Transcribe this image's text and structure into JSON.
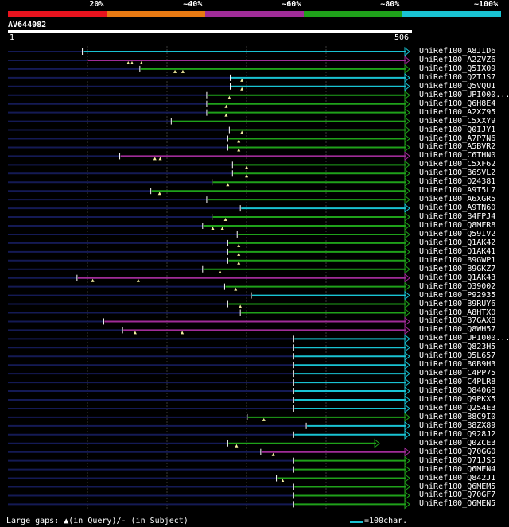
{
  "legend": {
    "segments": [
      {
        "label": "20%",
        "color": "#e8131e"
      },
      {
        "label": "~40%",
        "color": "#e87a13"
      },
      {
        "label": "~60%",
        "color": "#a02c98"
      },
      {
        "label": "~80%",
        "color": "#1fa11a"
      },
      {
        "label": "~100%",
        "color": "#19c3d3"
      }
    ]
  },
  "query": {
    "name": "AV644082",
    "start_label": "1",
    "end_label": "506",
    "length": 506
  },
  "colors": {
    "cyan": "#19c3d3",
    "green": "#1fa11a",
    "magenta": "#a02c98",
    "dark_line": "#141a55",
    "grid": "#3a3a3a",
    "marker": "#f5f0a0"
  },
  "hits": [
    {
      "id": "UniRef100_A8JID6",
      "start": 237,
      "end": 1279,
      "color": "cyan",
      "markers": []
    },
    {
      "id": "UniRef100_A2ZVZ6",
      "start": 252,
      "end": 1279,
      "color": "magenta",
      "markers": [
        383,
        395,
        425
      ]
    },
    {
      "id": "UniRef100_Q5IX09",
      "start": 420,
      "end": 1279,
      "color": "green",
      "markers": [
        532,
        557
      ]
    },
    {
      "id": "UniRef100_Q2TJS7",
      "start": 708,
      "end": 1279,
      "color": "cyan",
      "markers": [
        745
      ]
    },
    {
      "id": "UniRef100_Q5VQU1",
      "start": 708,
      "end": 1279,
      "color": "cyan",
      "markers": [
        745
      ]
    },
    {
      "id": "UniRef100_UPI000...",
      "start": 633,
      "end": 1279,
      "color": "green",
      "markers": [
        705
      ]
    },
    {
      "id": "UniRef100_Q6H8E4",
      "start": 633,
      "end": 1279,
      "color": "green",
      "markers": [
        695
      ]
    },
    {
      "id": "UniRef100_A2XZ95",
      "start": 633,
      "end": 1279,
      "color": "green",
      "markers": [
        695
      ]
    },
    {
      "id": "UniRef100_C5XXY9",
      "start": 520,
      "end": 1279,
      "color": "green",
      "markers": []
    },
    {
      "id": "UniRef100_Q0IJY1",
      "start": 705,
      "end": 1279,
      "color": "green",
      "markers": [
        745
      ]
    },
    {
      "id": "UniRef100_A7P7N6",
      "start": 700,
      "end": 1279,
      "color": "green",
      "markers": [
        735
      ]
    },
    {
      "id": "UniRef100_A5BVR2",
      "start": 700,
      "end": 1279,
      "color": "green",
      "markers": [
        735
      ]
    },
    {
      "id": "UniRef100_C6THN0",
      "start": 356,
      "end": 1279,
      "color": "magenta",
      "markers": [
        468,
        485
      ]
    },
    {
      "id": "UniRef100_C5XF62",
      "start": 715,
      "end": 1279,
      "color": "green",
      "markers": [
        760
      ]
    },
    {
      "id": "UniRef100_B6SVL2",
      "start": 715,
      "end": 1279,
      "color": "green",
      "markers": [
        760
      ]
    },
    {
      "id": "UniRef100_O24381",
      "start": 650,
      "end": 1279,
      "color": "green",
      "markers": [
        700
      ]
    },
    {
      "id": "UniRef100_A9T5L7",
      "start": 455,
      "end": 1279,
      "color": "green",
      "markers": [
        483
      ]
    },
    {
      "id": "UniRef100_A6XGR5",
      "start": 633,
      "end": 1279,
      "color": "green",
      "markers": []
    },
    {
      "id": "UniRef100_A9TN60",
      "start": 740,
      "end": 1279,
      "color": "cyan",
      "markers": []
    },
    {
      "id": "UniRef100_B4FPJ4",
      "start": 650,
      "end": 1279,
      "color": "green",
      "markers": [
        693
      ]
    },
    {
      "id": "UniRef100_Q8MFR8",
      "start": 620,
      "end": 1279,
      "color": "green",
      "markers": [
        652,
        683
      ]
    },
    {
      "id": "UniRef100_Q59IV2",
      "start": 730,
      "end": 1279,
      "color": "green",
      "markers": []
    },
    {
      "id": "UniRef100_Q1AK42",
      "start": 700,
      "end": 1279,
      "color": "green",
      "markers": [
        735
      ]
    },
    {
      "id": "UniRef100_Q1AK41",
      "start": 700,
      "end": 1279,
      "color": "green",
      "markers": [
        735
      ]
    },
    {
      "id": "UniRef100_B9GWP1",
      "start": 700,
      "end": 1279,
      "color": "green",
      "markers": [
        735
      ]
    },
    {
      "id": "UniRef100_B9GKZ7",
      "start": 620,
      "end": 1279,
      "color": "green",
      "markers": [
        675
      ]
    },
    {
      "id": "UniRef100_Q1AK43",
      "start": 220,
      "end": 1279,
      "color": "magenta",
      "markers": [
        270,
        415
      ]
    },
    {
      "id": "UniRef100_Q39002",
      "start": 690,
      "end": 1279,
      "color": "green",
      "markers": [
        725
      ]
    },
    {
      "id": "UniRef100_P92935",
      "start": 775,
      "end": 1279,
      "color": "cyan",
      "markers": []
    },
    {
      "id": "UniRef100_B9RUY6",
      "start": 700,
      "end": 1279,
      "color": "green",
      "markers": [
        740
      ]
    },
    {
      "id": "UniRef100_A8HTX0",
      "start": 740,
      "end": 1279,
      "color": "green",
      "markers": []
    },
    {
      "id": "UniRef100_B7GAX8",
      "start": 305,
      "end": 1279,
      "color": "magenta",
      "markers": []
    },
    {
      "id": "UniRef100_Q8WH57",
      "start": 365,
      "end": 1279,
      "color": "magenta",
      "markers": [
        405,
        555
      ]
    },
    {
      "id": "UniRef100_UPI000...",
      "start": 910,
      "end": 1279,
      "color": "cyan",
      "markers": []
    },
    {
      "id": "UniRef100_Q823H5",
      "start": 910,
      "end": 1279,
      "color": "cyan",
      "markers": []
    },
    {
      "id": "UniRef100_Q5L657",
      "start": 910,
      "end": 1279,
      "color": "cyan",
      "markers": []
    },
    {
      "id": "UniRef100_B0B9H3",
      "start": 910,
      "end": 1279,
      "color": "cyan",
      "markers": []
    },
    {
      "id": "UniRef100_C4PP75",
      "start": 910,
      "end": 1279,
      "color": "cyan",
      "markers": []
    },
    {
      "id": "UniRef100_C4PLR8",
      "start": 910,
      "end": 1279,
      "color": "cyan",
      "markers": []
    },
    {
      "id": "UniRef100_O84068",
      "start": 910,
      "end": 1279,
      "color": "cyan",
      "markers": []
    },
    {
      "id": "UniRef100_Q9PKX5",
      "start": 910,
      "end": 1279,
      "color": "cyan",
      "markers": []
    },
    {
      "id": "UniRef100_Q254E3",
      "start": 910,
      "end": 1279,
      "color": "cyan",
      "markers": []
    },
    {
      "id": "UniRef100_B8C9I0",
      "start": 762,
      "end": 1279,
      "color": "green",
      "markers": [
        815
      ]
    },
    {
      "id": "UniRef100_B8ZX89",
      "start": 950,
      "end": 1279,
      "color": "cyan",
      "markers": []
    },
    {
      "id": "UniRef100_Q928J2",
      "start": 910,
      "end": 1279,
      "color": "cyan",
      "markers": []
    },
    {
      "id": "UniRef100_Q0ZCE3",
      "start": 700,
      "end": 1183,
      "color": "green",
      "markers": [
        728
      ]
    },
    {
      "id": "UniRef100_Q70GG0",
      "start": 805,
      "end": 1279,
      "color": "magenta",
      "markers": [
        845
      ]
    },
    {
      "id": "UniRef100_Q71JS5",
      "start": 910,
      "end": 1279,
      "color": "green",
      "markers": []
    },
    {
      "id": "UniRef100_Q6MEN4",
      "start": 910,
      "end": 1279,
      "color": "green",
      "markers": []
    },
    {
      "id": "UniRef100_Q842J1",
      "start": 855,
      "end": 1279,
      "color": "green",
      "markers": [
        875
      ]
    },
    {
      "id": "UniRef100_Q6MEM5",
      "start": 910,
      "end": 1279,
      "color": "green",
      "markers": []
    },
    {
      "id": "UniRef100_Q70GF7",
      "start": 910,
      "end": 1279,
      "color": "green",
      "markers": []
    },
    {
      "id": "UniRef100_Q6MEN5",
      "start": 910,
      "end": 1279,
      "color": "green",
      "markers": []
    }
  ],
  "footer": {
    "gaps_text": "Large gaps: ▲(in Query)/- (in Subject)",
    "scale_text": "=100char."
  }
}
